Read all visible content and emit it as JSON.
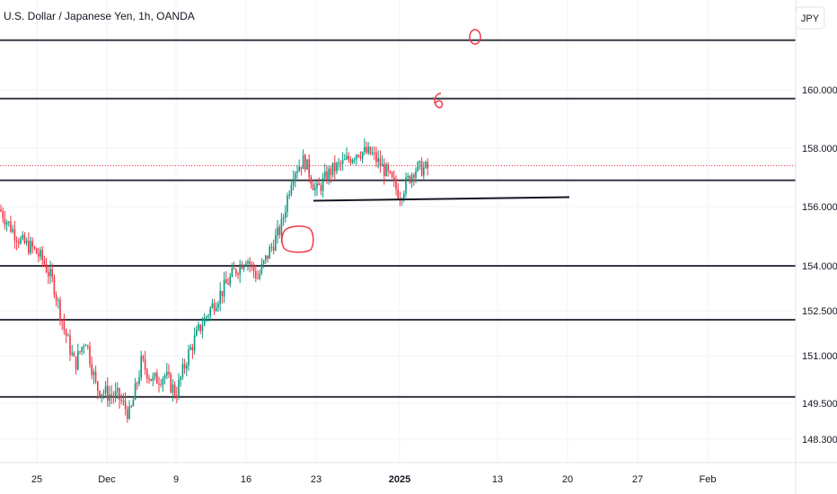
{
  "chart_data": {
    "type": "candlestick",
    "title": "U.S. Dollar / Japanese Yen, 1h, OANDA",
    "currency_button": "JPY",
    "y_ticks": [
      "160.000",
      "158.000",
      "156.000",
      "154.000",
      "152.500",
      "151.000",
      "149.500",
      "148.300"
    ],
    "x_ticks": [
      "25",
      "Dec",
      "9",
      "16",
      "23",
      "2025",
      "13",
      "20",
      "27",
      "Feb"
    ],
    "support_resistance_levels": [
      161.7,
      159.7,
      156.9,
      154.0,
      152.2,
      149.7
    ],
    "trendline": {
      "from": [
        "23",
        156.2
      ],
      "to": [
        "20",
        156.2
      ]
    },
    "price_path": [
      [
        "start",
        155.9
      ],
      [
        "",
        155.3
      ],
      [
        "",
        154.8
      ],
      [
        "",
        154.6
      ],
      [
        "",
        154.2
      ],
      [
        "",
        153.4
      ],
      [
        "",
        151.9
      ],
      [
        "",
        150.7
      ],
      [
        "",
        151.6
      ],
      [
        "",
        150.0
      ],
      [
        "Dec",
        149.8
      ],
      [
        "",
        149.7
      ],
      [
        "",
        149.1
      ],
      [
        "",
        150.8
      ],
      [
        "",
        150.2
      ],
      [
        "",
        150.4
      ],
      [
        "9",
        149.8
      ],
      [
        "",
        151.0
      ],
      [
        "",
        151.9
      ],
      [
        "",
        152.6
      ],
      [
        "",
        153.2
      ],
      [
        "",
        153.8
      ],
      [
        "16",
        154.3
      ],
      [
        "",
        153.6
      ],
      [
        "",
        154.5
      ],
      [
        "",
        155.3
      ],
      [
        "",
        157.2
      ],
      [
        "",
        157.6
      ],
      [
        "23",
        156.5
      ],
      [
        "",
        157.2
      ],
      [
        "",
        157.5
      ],
      [
        "",
        157.9
      ],
      [
        "",
        157.8
      ],
      [
        "",
        157.2
      ],
      [
        "2025",
        156.4
      ],
      [
        "",
        157.3
      ],
      [
        "end",
        157.3
      ]
    ],
    "current_price": 157.4,
    "grid": true,
    "annotations": [
      "circle-near-top",
      "number-6",
      "rounded-box-near-breakout"
    ]
  }
}
